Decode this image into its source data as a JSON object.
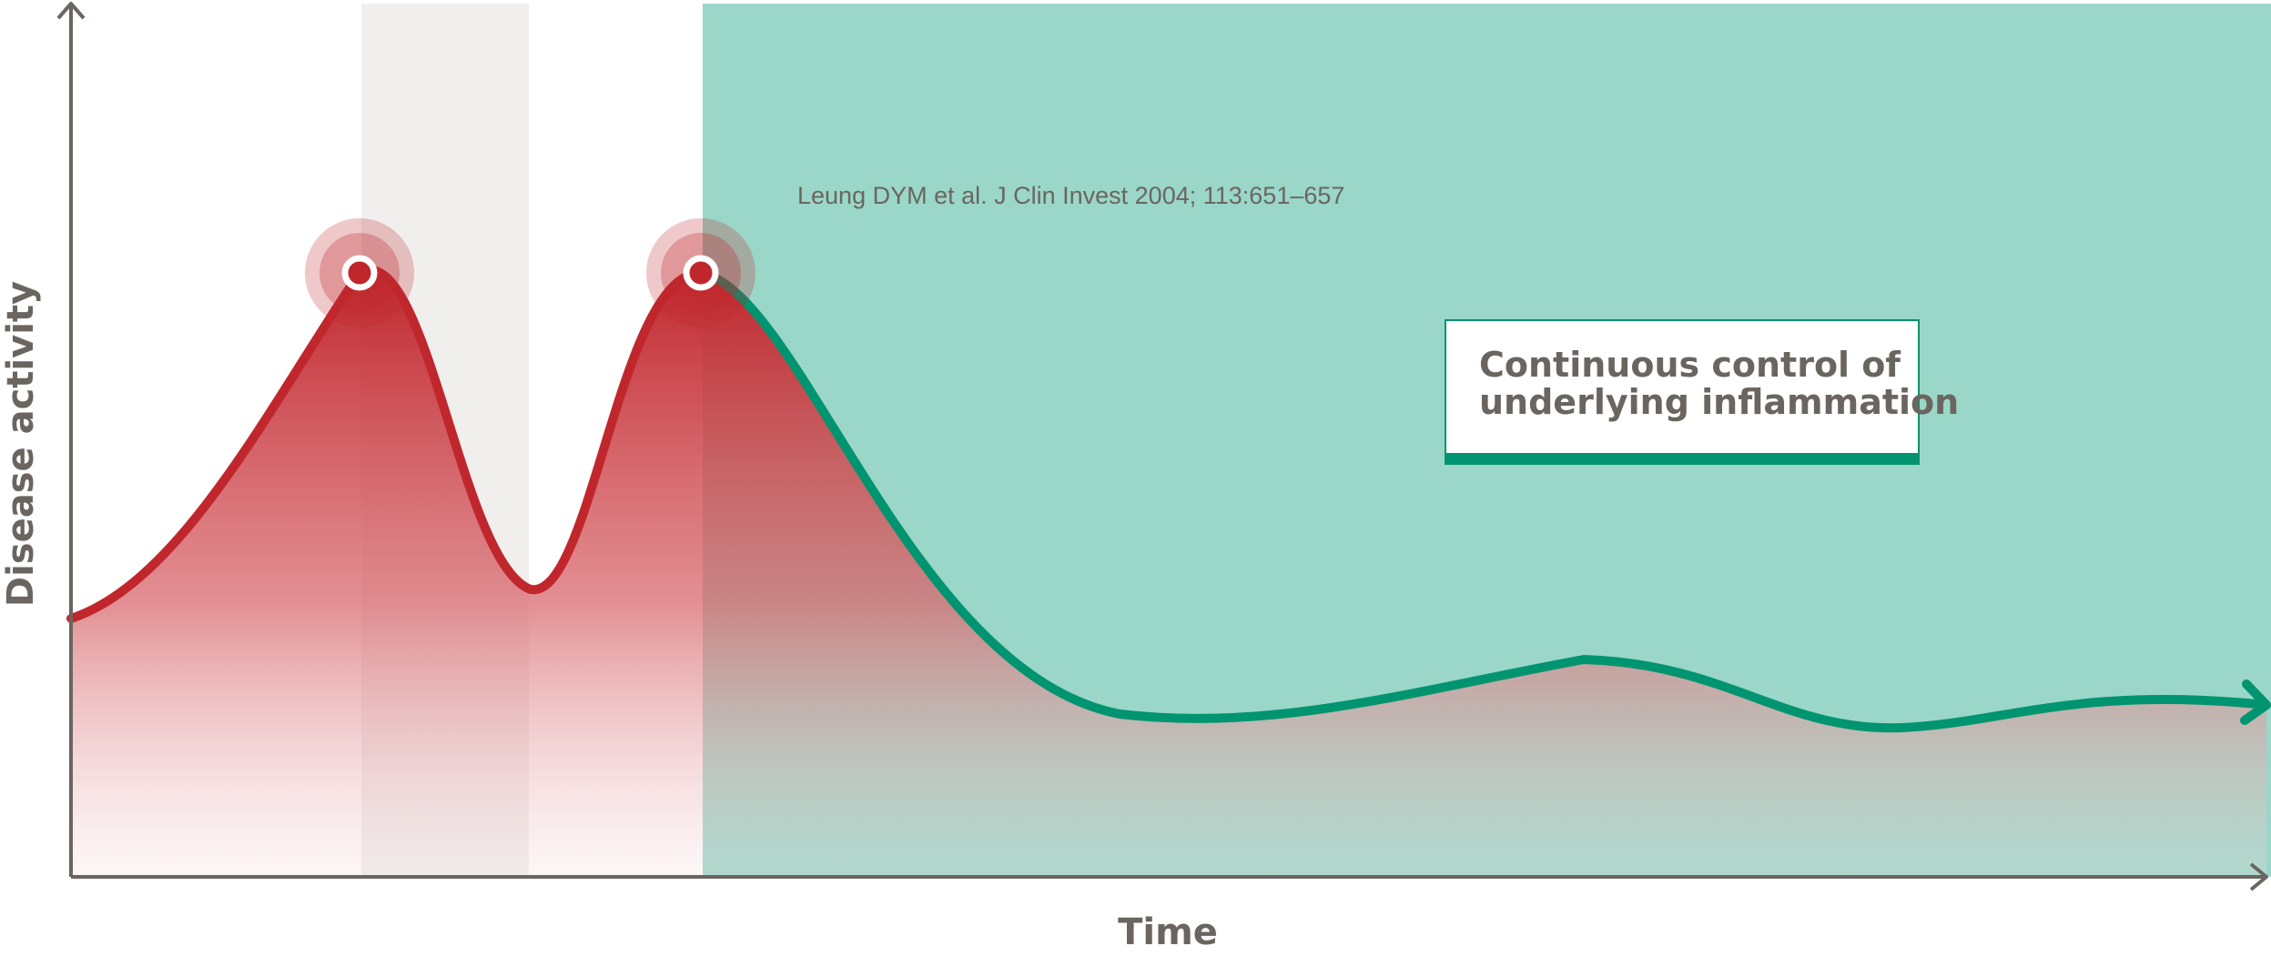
{
  "axes": {
    "y_label": "Disease activity",
    "x_label": "Time"
  },
  "citation": "Leung DYM et al. J Clin Invest 2004; 113:651–657",
  "callout": {
    "line1": "Continuous control of",
    "line2": "underlying inflammation"
  },
  "colors": {
    "flare_red": "#c0272d",
    "control_green": "#009470",
    "control_zone": "#9ad7c8",
    "gap_zone": "#f0efee",
    "axis": "#6b6560",
    "text": "#6b6560"
  },
  "markers": [
    {
      "name": "flare-1"
    },
    {
      "name": "flare-2"
    }
  ]
}
